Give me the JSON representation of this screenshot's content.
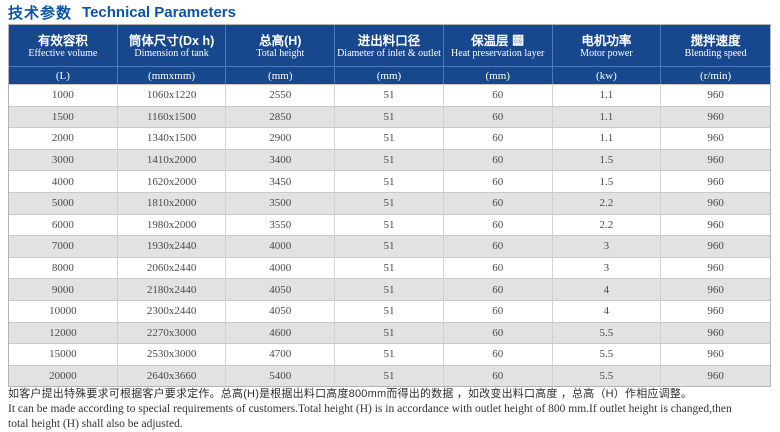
{
  "title": {
    "zh": "技术参数",
    "en": "Technical Parameters"
  },
  "colors": {
    "title_blue": "#0a55a6",
    "header_bg": "#17478c",
    "header_divider": "#4d7ab8",
    "row_alt": "#e2e2e4",
    "row_border": "#c9c9c9",
    "data_text": "#4a4a4a"
  },
  "table": {
    "columns": [
      {
        "zh": "有效容积",
        "en": "Effective volume",
        "unit": "(L)"
      },
      {
        "zh": "筒体尺寸(Dx h)",
        "en": "Dimension of tank",
        "unit": "(mmxmm)"
      },
      {
        "zh": "总高(H)",
        "en": "Total height",
        "unit": "(mm)"
      },
      {
        "zh": "进出料口径",
        "en": "Diameter of inlet & outlet",
        "unit": "(mm)"
      },
      {
        "zh": "保温层 ▩",
        "en": "Heat preservation layer",
        "unit": "(mm)"
      },
      {
        "zh": "电机功率",
        "en": "Motor power",
        "unit": "(kw)"
      },
      {
        "zh": "搅拌速度",
        "en": "Blending speed",
        "unit": "(r/min)"
      }
    ],
    "rows": [
      [
        "1000",
        "1060x1220",
        "2550",
        "51",
        "60",
        "1.1",
        "960"
      ],
      [
        "1500",
        "1160x1500",
        "2850",
        "51",
        "60",
        "1.1",
        "960"
      ],
      [
        "2000",
        "1340x1500",
        "2900",
        "51",
        "60",
        "1.1",
        "960"
      ],
      [
        "3000",
        "1410x2000",
        "3400",
        "51",
        "60",
        "1.5",
        "960"
      ],
      [
        "4000",
        "1620x2000",
        "3450",
        "51",
        "60",
        "1.5",
        "960"
      ],
      [
        "5000",
        "1810x2000",
        "3500",
        "51",
        "60",
        "2.2",
        "960"
      ],
      [
        "6000",
        "1980x2000",
        "3550",
        "51",
        "60",
        "2.2",
        "960"
      ],
      [
        "7000",
        "1930x2440",
        "4000",
        "51",
        "60",
        "3",
        "960"
      ],
      [
        "8000",
        "2060x2440",
        "4000",
        "51",
        "60",
        "3",
        "960"
      ],
      [
        "9000",
        "2180x2440",
        "4050",
        "51",
        "60",
        "4",
        "960"
      ],
      [
        "10000",
        "2300x2440",
        "4050",
        "51",
        "60",
        "4",
        "960"
      ],
      [
        "12000",
        "2270x3000",
        "4600",
        "51",
        "60",
        "5.5",
        "960"
      ],
      [
        "15000",
        "2530x3000",
        "4700",
        "51",
        "60",
        "5.5",
        "960"
      ],
      [
        "20000",
        "2640x3660",
        "5400",
        "51",
        "60",
        "5.5",
        "960"
      ]
    ]
  },
  "footnote": {
    "zh": "如客户提出特殊要求可根据客户要求定作。总高(H)是根据出料口高度800mm而得出的数据 ，如改变出料口高度 ，总高（H）作相应调整。",
    "en_line1": "It can be made according to special requirements of customers.Total height (H) is in accordance with outlet height of 800 mm.If outlet height is changed,then",
    "en_line2": "total height (H) shall also be adjusted."
  }
}
